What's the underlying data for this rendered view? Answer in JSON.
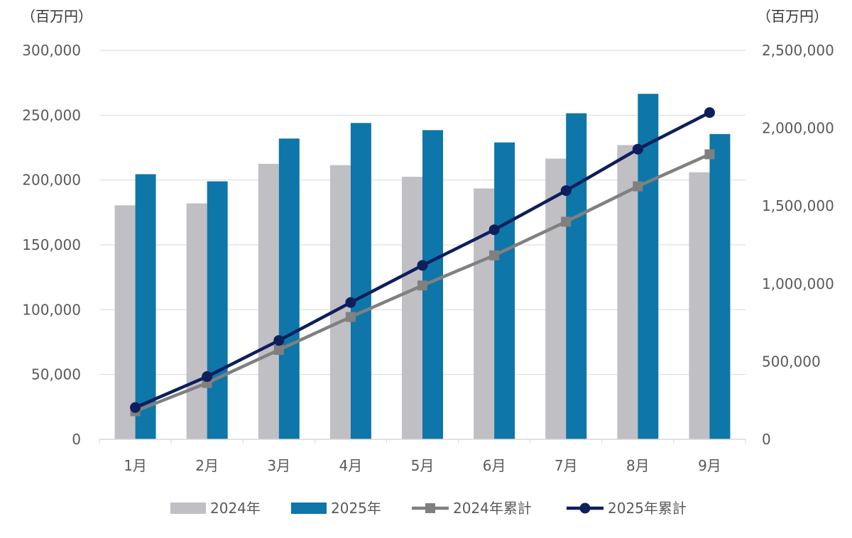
{
  "chart_data": {
    "type": "bar",
    "categories": [
      "1月",
      "2月",
      "3月",
      "4月",
      "5月",
      "6月",
      "7月",
      "8月",
      "9月"
    ],
    "series": [
      {
        "name": "2024年",
        "type": "bar",
        "axis": "left",
        "color": "#c0bfc4",
        "values": [
          180500,
          182000,
          212500,
          211500,
          202500,
          193500,
          216500,
          227000,
          206000
        ]
      },
      {
        "name": "2025年",
        "type": "bar",
        "axis": "left",
        "color": "#0e76a8",
        "values": [
          204500,
          199000,
          232000,
          244000,
          238500,
          229000,
          251500,
          266500,
          235500
        ]
      },
      {
        "name": "2024年累計",
        "type": "line",
        "axis": "right",
        "color": "#808080",
        "marker": "square",
        "values": [
          180500,
          362500,
          575000,
          786500,
          989000,
          1182500,
          1399000,
          1626000,
          1832000
        ]
      },
      {
        "name": "2025年累計",
        "type": "line",
        "axis": "right",
        "color": "#0d1f5c",
        "marker": "circle",
        "values": [
          204500,
          403500,
          635500,
          879500,
          1118000,
          1347000,
          1598500,
          1865000,
          2100500
        ]
      }
    ],
    "y_left": {
      "unit": "（百万円）",
      "min": 0,
      "max": 300000,
      "ticks": [
        0,
        50000,
        100000,
        150000,
        200000,
        250000,
        300000
      ],
      "tick_labels": [
        "0",
        "50,000",
        "100,000",
        "150,000",
        "200,000",
        "250,000",
        "300,000"
      ]
    },
    "y_right": {
      "unit": "（百万円）",
      "min": 0,
      "max": 2500000,
      "ticks": [
        0,
        500000,
        1000000,
        1500000,
        2000000,
        2500000
      ],
      "tick_labels": [
        "0",
        "500,000",
        "1,000,000",
        "1,500,000",
        "2,000,000",
        "2,500,000"
      ]
    },
    "grid": true,
    "legend_position": "bottom"
  }
}
